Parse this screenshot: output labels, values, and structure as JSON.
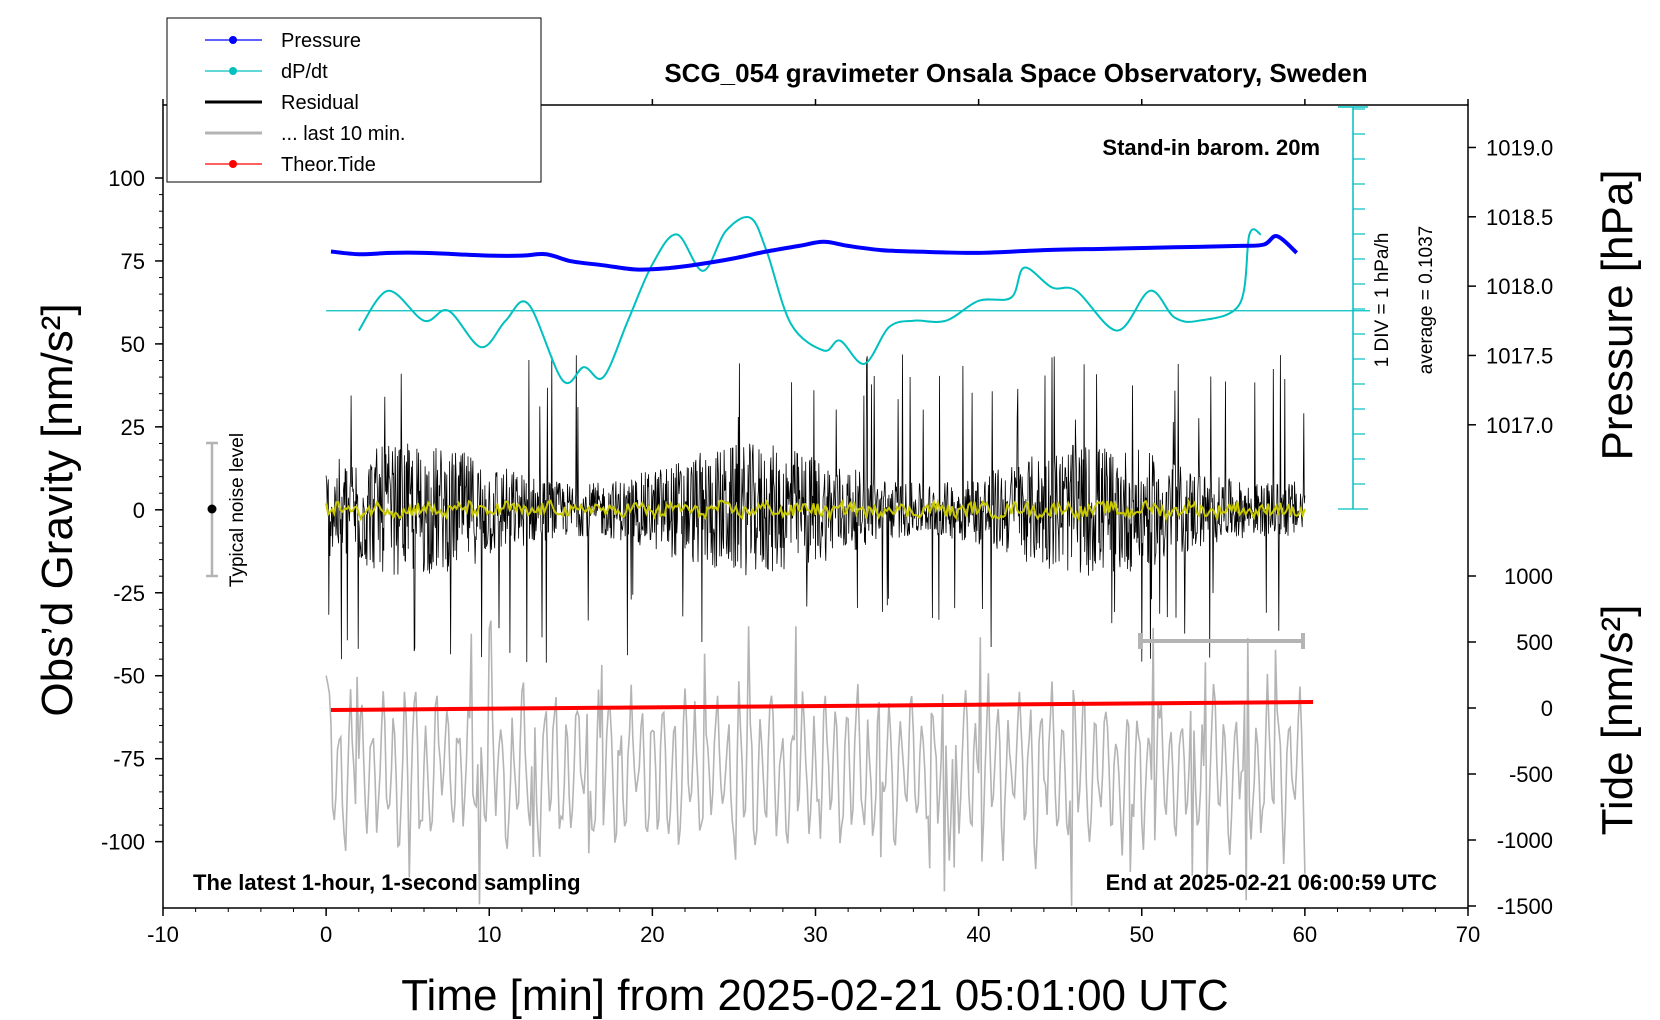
{
  "chart_data": {
    "type": "line",
    "title": "SCG_054 gravimeter Onsala Space Observatory, Sweden",
    "xlabel": "Time [min] from 2025-02-21 05:01:00 UTC",
    "ylabel_left": "Obs’d Gravity [nm/s²]",
    "ylabel_right_top": "Pressure [hPa]",
    "ylabel_right_bottom": "Tide [nm/s²]",
    "xlim": [
      -10,
      70
    ],
    "ylim": [
      -120,
      122
    ],
    "x_ticks": [
      "-10",
      "0",
      "10",
      "20",
      "30",
      "40",
      "50",
      "60",
      "70"
    ],
    "y_ticks": [
      "100",
      "75",
      "50",
      "25",
      "0",
      "-25",
      "-50",
      "-75",
      "-100"
    ],
    "pressure_axis": {
      "ticks": [
        "1019.0",
        "1018.5",
        "1018.0",
        "1017.5",
        "1017.0"
      ],
      "range": [
        1016.4,
        1019.4
      ]
    },
    "tide_axis": {
      "ticks": [
        "1000",
        "500",
        "0",
        "-500",
        "-1000",
        "-1500"
      ],
      "range": [
        -1500,
        1000
      ]
    },
    "legend": {
      "placement": "top-left",
      "entries": [
        {
          "label": "Pressure",
          "color": "#0000ff",
          "marker": "dot"
        },
        {
          "label": "dP/dt",
          "color": "#00c0c0",
          "marker": "dot"
        },
        {
          "label": "Residual",
          "color": "#000000",
          "marker": "line"
        },
        {
          "label": "... last 10 min.",
          "color": "#b4b4b4",
          "marker": "line"
        },
        {
          "label": "Theor.Tide",
          "color": "#ff0000",
          "marker": "dot"
        }
      ]
    },
    "annotations": {
      "stand_in": "Stand-in barom. 20m",
      "latest": "The latest 1-hour, 1-second sampling",
      "end_at": "End at 2025-02-21 06:00:59 UTC",
      "div_label": "1 DIV = 1 hPa/h",
      "average_label": "average = 0.1037",
      "noise_label": "Typical noise level",
      "noise_level": [
        -20,
        20
      ]
    },
    "series": [
      {
        "name": "Pressure",
        "unit": "hPa",
        "color": "#0000ff",
        "x": [
          0.3,
          2,
          4,
          6,
          8,
          10,
          12,
          13.5,
          15,
          17,
          19,
          21,
          23,
          25,
          27,
          29,
          30.5,
          32,
          34,
          36,
          40,
          44,
          48,
          52,
          56,
          57.5,
          58.3,
          59.5
        ],
        "values": [
          1018.25,
          1018.23,
          1018.24,
          1018.24,
          1018.23,
          1018.22,
          1018.22,
          1018.23,
          1018.18,
          1018.15,
          1018.12,
          1018.13,
          1018.16,
          1018.2,
          1018.25,
          1018.29,
          1018.32,
          1018.29,
          1018.26,
          1018.25,
          1018.24,
          1018.26,
          1018.27,
          1018.28,
          1018.29,
          1018.3,
          1018.36,
          1018.24
        ]
      },
      {
        "name": "dP/dt",
        "unit": "nm/s² (overlay)",
        "color": "#00c0c0",
        "x": [
          2,
          3.8,
          6,
          7.5,
          9.5,
          11,
          12.4,
          14.5,
          15.8,
          17,
          18.5,
          20,
          21.5,
          23.1,
          24.5,
          26,
          27,
          28.5,
          30.5,
          31.5,
          33,
          34.5,
          36,
          38,
          40,
          42,
          42.8,
          44.5,
          46,
          48.5,
          50.5,
          52,
          53.5,
          56,
          56.6,
          57.3
        ],
        "values": [
          54,
          66,
          57,
          60,
          49,
          57,
          62,
          39,
          43,
          40,
          57,
          74,
          83,
          72,
          84,
          88,
          78,
          56,
          48,
          51,
          44,
          55,
          57,
          57,
          63,
          64,
          73,
          67,
          66,
          54,
          66,
          58,
          57,
          62,
          83,
          83
        ]
      },
      {
        "name": "Residual",
        "unit": "nm/s²",
        "color": "#000000",
        "x_range": [
          0,
          60
        ],
        "envelope": [
          -50,
          50
        ]
      },
      {
        "name": "... last 10 min.",
        "unit": "nm/s² (offset)",
        "color": "#b4b4b4",
        "x_range": [
          0,
          60
        ],
        "scale_marker_x": [
          50,
          60
        ],
        "scale_marker_y": -40
      },
      {
        "name": "Theor.Tide",
        "unit": "nm/s²",
        "color": "#ff0000",
        "x": [
          0.3,
          60.5
        ],
        "values": [
          -15,
          15
        ]
      }
    ]
  }
}
